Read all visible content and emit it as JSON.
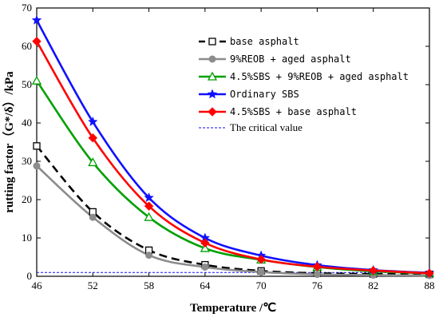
{
  "chart_data": {
    "type": "line",
    "xlabel": "Temperature /℃",
    "ylabel": "rutting factor（G*/δ）/kPa",
    "xlim": [
      46,
      88
    ],
    "ylim": [
      0,
      70
    ],
    "xticks": [
      46,
      52,
      58,
      64,
      70,
      76,
      82,
      88
    ],
    "yticks": [
      0,
      10,
      20,
      30,
      40,
      50,
      60,
      70
    ],
    "legend_position": "top-right",
    "critical_value": 1,
    "series": [
      {
        "name": "base asphalt",
        "color": "#000000",
        "line": "dashed",
        "marker": "open-square",
        "x": [
          46,
          52,
          58,
          64,
          70,
          76,
          82,
          88
        ],
        "values": [
          34.0,
          16.8,
          6.8,
          3.0,
          1.4,
          0.8,
          0.6,
          0.5
        ]
      },
      {
        "name": "9%REOB + aged asphalt",
        "color": "#8c8c8c",
        "line": "solid",
        "marker": "filled-circle",
        "x": [
          46,
          52,
          58,
          64,
          70,
          76,
          82,
          88
        ],
        "values": [
          28.8,
          15.4,
          5.5,
          2.4,
          1.1,
          0.5,
          0.3,
          0.2
        ]
      },
      {
        "name": "4.5%SBS + 9%REOB + aged asphalt",
        "color": "#00a000",
        "line": "solid",
        "marker": "open-triangle",
        "x": [
          46,
          52,
          58,
          64,
          70,
          76,
          82,
          88
        ],
        "values": [
          51.0,
          29.7,
          15.4,
          7.3,
          4.3,
          2.4,
          1.3,
          0.8
        ]
      },
      {
        "name": "Ordinary SBS",
        "color": "#1010ff",
        "line": "solid",
        "marker": "star",
        "x": [
          46,
          52,
          58,
          64,
          70,
          76,
          82,
          88
        ],
        "values": [
          66.8,
          40.3,
          20.5,
          10.0,
          5.4,
          2.9,
          1.6,
          0.9
        ]
      },
      {
        "name": "4.5%SBS + base asphalt",
        "color": "#ff0000",
        "line": "solid",
        "marker": "filled-diamond",
        "x": [
          46,
          52,
          58,
          64,
          70,
          76,
          82,
          88
        ],
        "values": [
          61.3,
          36.1,
          18.3,
          8.7,
          4.4,
          2.5,
          1.5,
          0.8
        ]
      }
    ],
    "reference_line": {
      "name": "The critical value",
      "color": "#1010ff",
      "line": "dotted",
      "value": 1
    }
  }
}
